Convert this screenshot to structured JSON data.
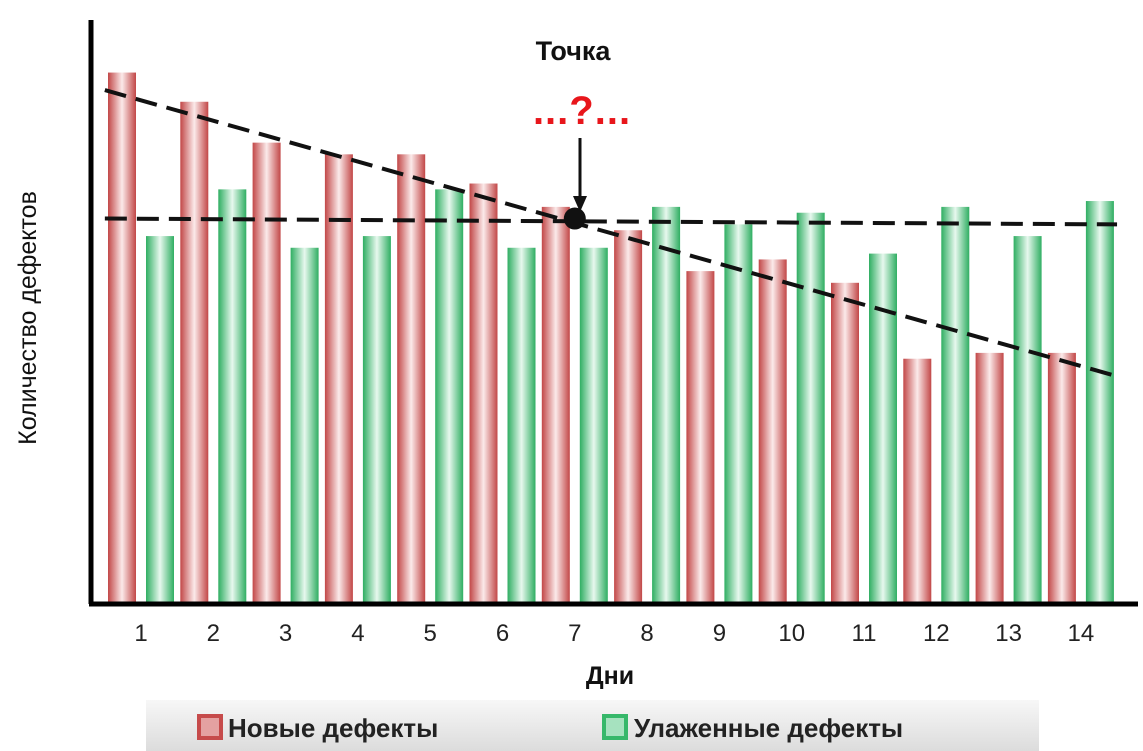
{
  "chart_data": {
    "type": "bar",
    "ylabel": "Количество дефектов",
    "xlabel": "Дни",
    "categories": [
      "1",
      "2",
      "3",
      "4",
      "5",
      "6",
      "7",
      "8",
      "9",
      "10",
      "11",
      "12",
      "13",
      "14"
    ],
    "ylim": [
      0,
      100
    ],
    "series": [
      {
        "name": "Новые дефекты",
        "color": "#c64b4b",
        "values": [
          91,
          86,
          79,
          77,
          77,
          72,
          68,
          64,
          57,
          59,
          55,
          42,
          43,
          43
        ]
      },
      {
        "name": "Улаженные дефекты",
        "color": "#36b86a",
        "values": [
          63,
          71,
          61,
          63,
          71,
          61,
          61,
          68,
          65,
          67,
          60,
          68,
          63,
          69
        ]
      }
    ],
    "trend_lines": [
      {
        "style": "dashed",
        "from": {
          "x": 0.5,
          "y": 88
        },
        "to": {
          "x": 14.5,
          "y": 39
        }
      },
      {
        "style": "dashed",
        "from": {
          "x": 0.5,
          "y": 66
        },
        "to": {
          "x": 14.5,
          "y": 65
        }
      }
    ],
    "annotation": {
      "title": "Точка",
      "text": "...?...",
      "x": 7,
      "y": 66
    },
    "legend_position": "bottom"
  }
}
